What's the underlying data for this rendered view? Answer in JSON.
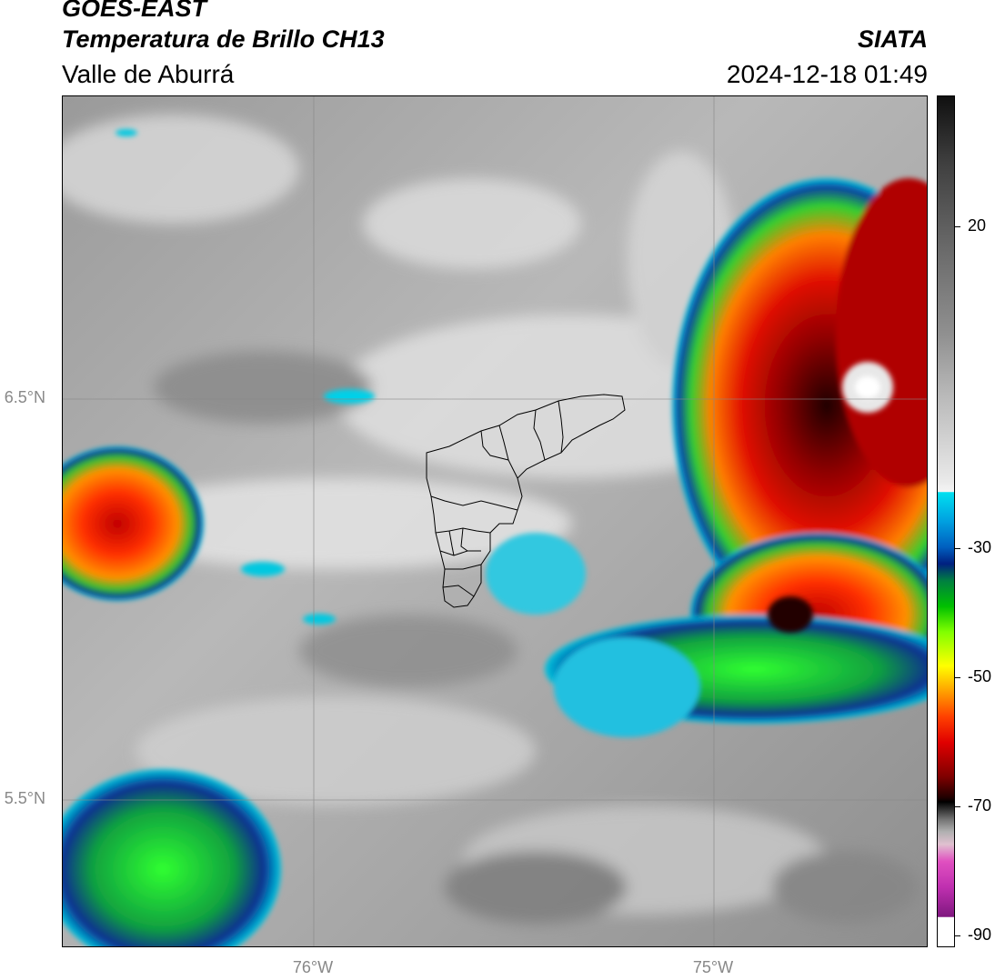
{
  "header": {
    "satellite": "GOES-EAST",
    "product": "Temperatura de Brillo CH13",
    "region": "Valle de Aburrá",
    "agency": "SIATA",
    "datetime": "2024-12-18 01:49"
  },
  "map": {
    "lat_labels": [
      "6.5°N",
      "5.5°N"
    ],
    "lon_labels": [
      "76°W",
      "75°W"
    ]
  },
  "colorbar": {
    "ticks": [
      "20",
      "-30",
      "-50",
      "-70",
      "-90"
    ],
    "range": [
      -90,
      30
    ],
    "units_shown": ""
  }
}
